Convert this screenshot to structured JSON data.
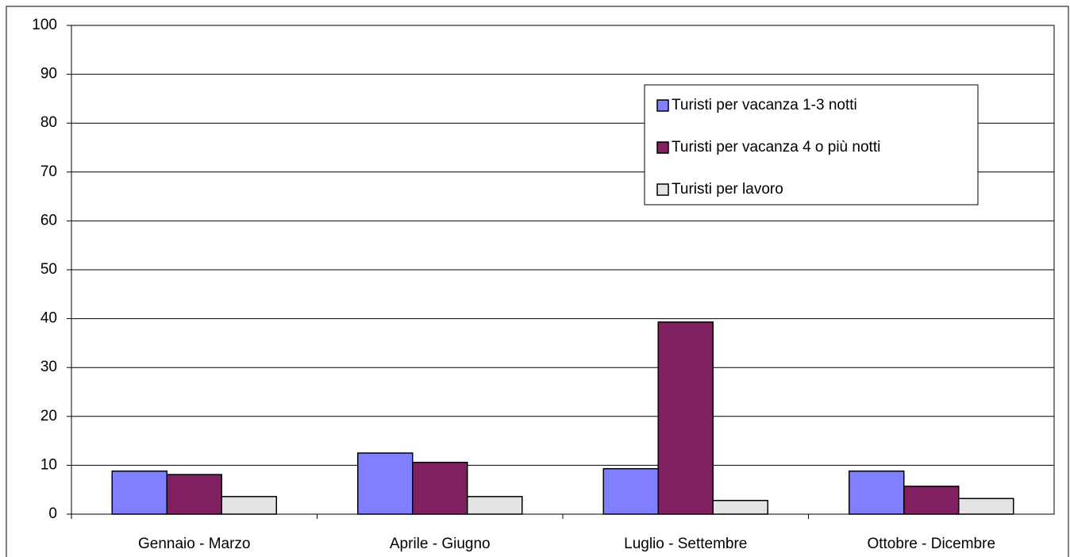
{
  "chart_data": {
    "type": "bar",
    "categories": [
      "Gennaio - Marzo",
      "Aprile - Giugno",
      "Luglio - Settembre",
      "Ottobre - Dicembre"
    ],
    "series": [
      {
        "name": "Turisti per vacanza 1-3 notti",
        "color": "#8080ff",
        "values": [
          8.8,
          12.5,
          9.3,
          8.8
        ]
      },
      {
        "name": "Turisti per vacanza 4 o più notti",
        "color": "#802060",
        "values": [
          8.1,
          10.6,
          39.3,
          5.7
        ]
      },
      {
        "name": "Turisti per lavoro",
        "color": "#e3e3e3",
        "values": [
          3.6,
          3.6,
          2.8,
          3.2
        ]
      }
    ],
    "ylim": [
      0,
      100
    ],
    "yticks": [
      0,
      10,
      20,
      30,
      40,
      50,
      60,
      70,
      80,
      90,
      100
    ],
    "grid": true,
    "legend": "upper right"
  }
}
